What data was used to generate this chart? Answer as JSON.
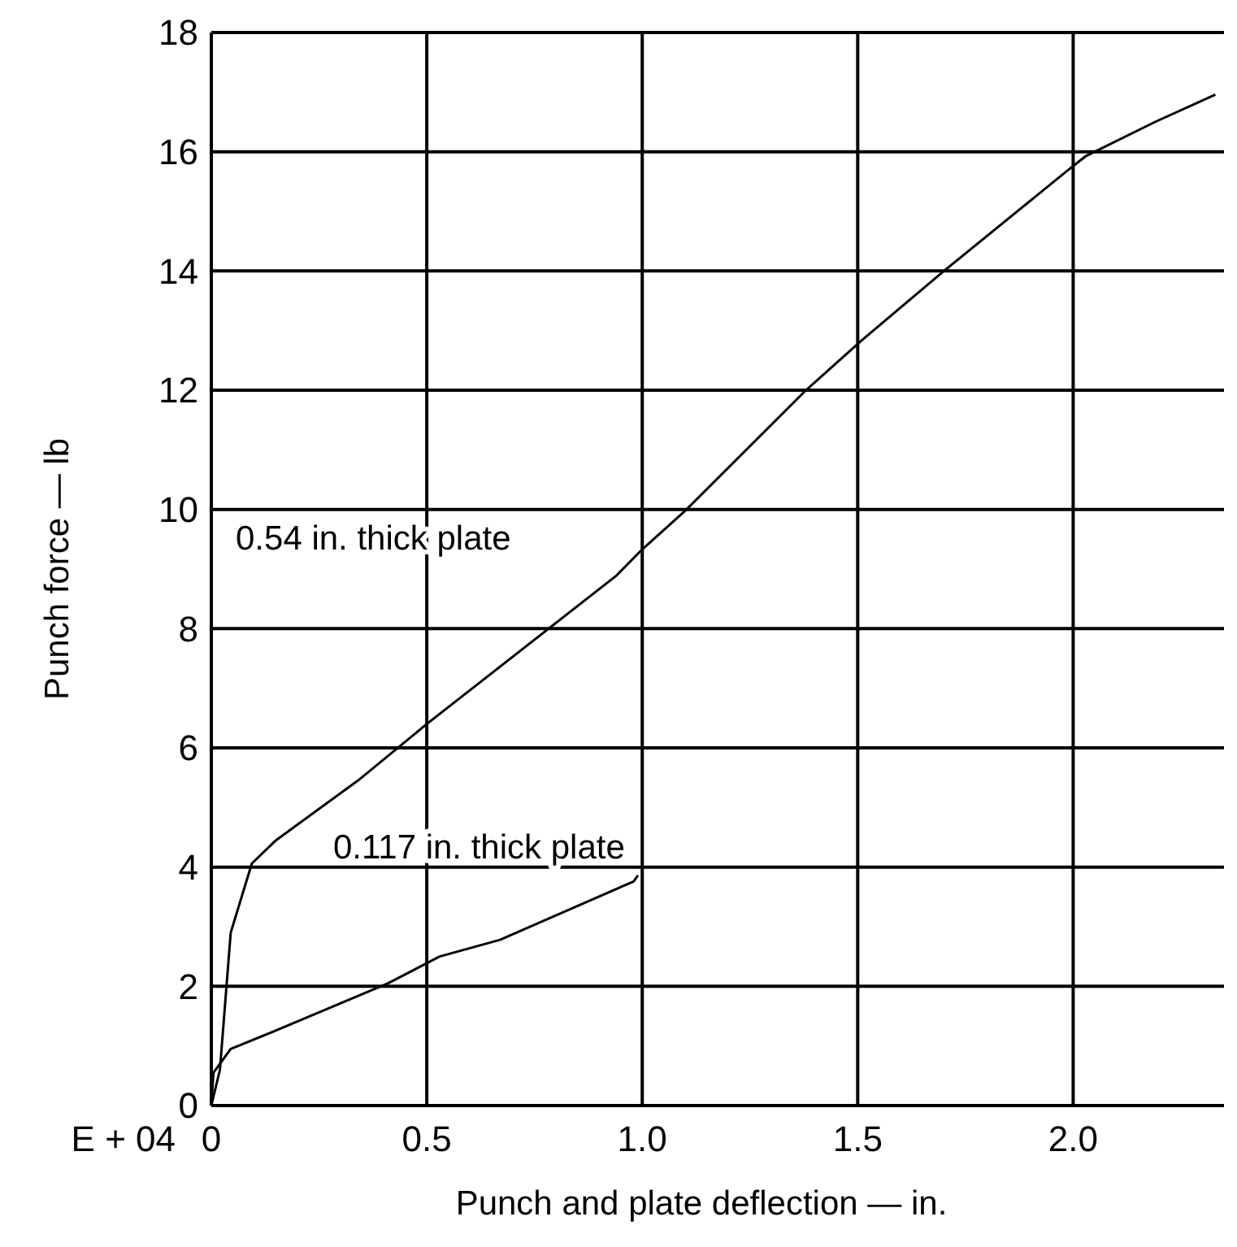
{
  "chart_data": {
    "type": "line",
    "xlabel": "Punch and plate deflection — in.",
    "ylabel": "Punch force — lb",
    "annotations": [
      "E + 04"
    ],
    "xlim": [
      0,
      2.35
    ],
    "ylim": [
      0,
      18
    ],
    "xticks": [
      0,
      {
        "value": 0.5,
        "label": "0.5"
      },
      {
        "value": 1,
        "label": "1.0"
      },
      {
        "value": 1.5,
        "label": "1.5"
      },
      {
        "value": 2,
        "label": "2.0"
      }
    ],
    "yticks": [
      0,
      2,
      4,
      6,
      8,
      10,
      12,
      14,
      16,
      18
    ],
    "grid": true,
    "marker": "none",
    "line_style": "solid",
    "series": [
      {
        "name": "0.54 in. thick plate",
        "color": "#000000",
        "x": [
          0,
          0.02,
          0.045,
          0.094,
          0.15,
          0.34,
          0.5,
          0.94,
          1.0,
          1.1,
          1.38,
          1.51,
          1.7,
          1.986,
          2.03,
          2.19,
          2.33
        ],
        "values": [
          0,
          0.6,
          2.9,
          4.06,
          4.45,
          5.45,
          6.4,
          8.89,
          9.33,
          9.98,
          12.0,
          12.84,
          14.0,
          15.68,
          15.93,
          16.5,
          16.96
        ]
      },
      {
        "name": "0.117 in. thick plate",
        "color": "#000000",
        "x": [
          0,
          0.005,
          0.045,
          0.14,
          0.41,
          0.53,
          0.67,
          0.98,
          0.99
        ],
        "values": [
          0,
          0.55,
          0.95,
          1.23,
          2.05,
          2.5,
          2.78,
          3.76,
          3.86
        ]
      }
    ]
  }
}
